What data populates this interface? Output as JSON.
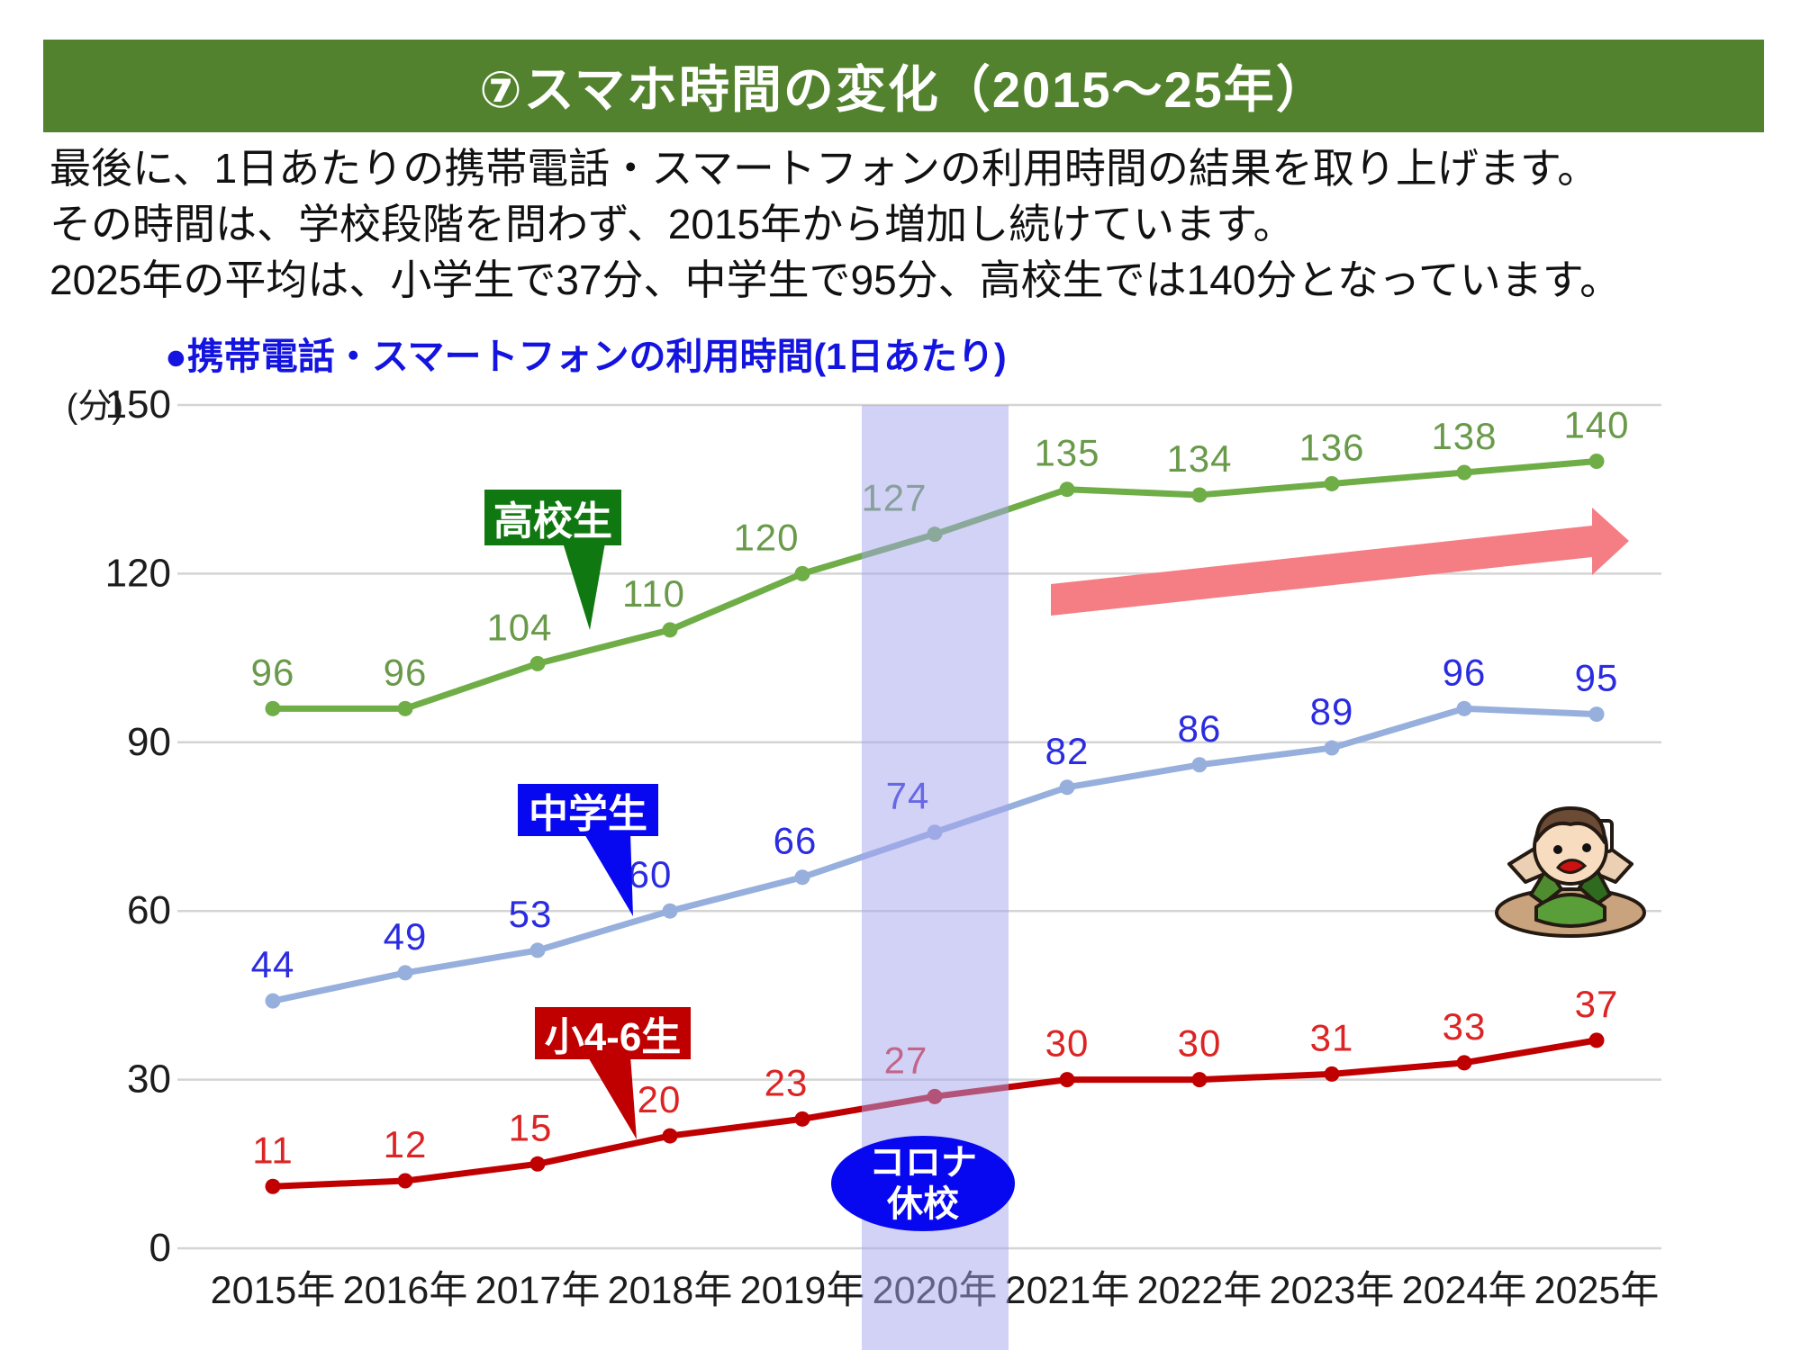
{
  "header": {
    "title": "⑦スマホ時間の変化（2015～25年）"
  },
  "body": {
    "line1": "最後に、1日あたりの携帯電話・スマートフォンの利用時間の結果を取り上げます。",
    "line2": "その時間は、学校段階を問わず、2015年から増加し続けています。",
    "line3": "2025年の平均は、小学生で37分、中学生で95分、高校生では140分となっています。"
  },
  "chart": {
    "title": "●携帯電話・スマートフォンの利用時間(1日あたり)",
    "unit": "(分)",
    "covid_note": {
      "line1": "コロナ",
      "line2": "休校"
    }
  },
  "chart_data": {
    "type": "line",
    "title": "携帯電話・スマートフォンの利用時間(1日あたり)",
    "ylabel": "分",
    "ylim": [
      0,
      150
    ],
    "yticks": [
      0,
      30,
      60,
      90,
      120,
      150
    ],
    "grid": "horizontal",
    "legend_position": "inline-callouts",
    "categories": [
      "2015年",
      "2016年",
      "2017年",
      "2018年",
      "2019年",
      "2020年",
      "2021年",
      "2022年",
      "2023年",
      "2024年",
      "2025年"
    ],
    "series": [
      {
        "name": "高校生",
        "color": "#6fad47",
        "label_color": "#699a4a",
        "values": [
          96,
          96,
          104,
          110,
          120,
          127,
          135,
          134,
          136,
          138,
          140
        ]
      },
      {
        "name": "中学生",
        "color": "#96afdc",
        "label_color": "#2b2be0",
        "values": [
          44,
          49,
          53,
          60,
          66,
          74,
          82,
          86,
          89,
          96,
          95
        ]
      },
      {
        "name": "小4-6生",
        "color": "#c00000",
        "label_color": "#dc2424",
        "values": [
          11,
          12,
          15,
          20,
          23,
          27,
          30,
          30,
          31,
          33,
          37
        ]
      }
    ],
    "annotations": {
      "band_category": "2020年",
      "band_color": "#a5a5ee",
      "band_label": "コロナ休校",
      "trend_arrow": "increasing",
      "arrow_color": "#f57d84"
    }
  }
}
